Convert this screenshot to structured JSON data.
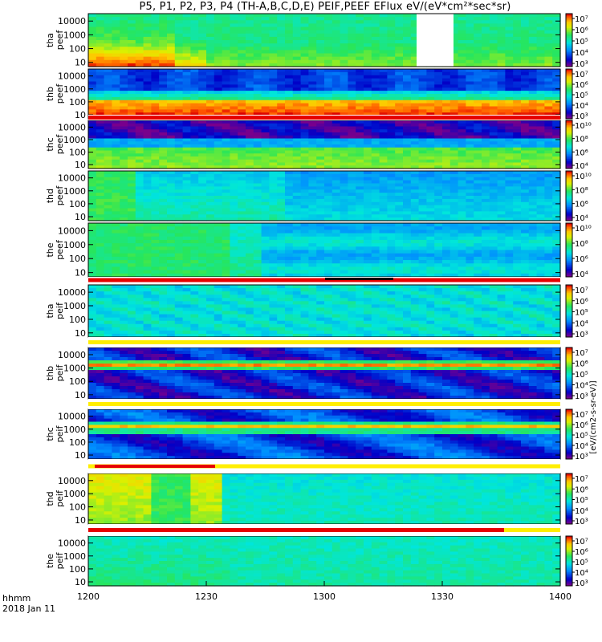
{
  "title": "P5, P1, P2, P3, P4 (TH-A,B,C,D,E) PEIF,PEEF EFlux eV/(eV*cm²*sec*sr)",
  "x_axis": {
    "ticks": [
      "1200",
      "1230",
      "1300",
      "1330",
      "1400"
    ],
    "label_line1": "hhmm",
    "label_line2": "2018 Jan 11"
  },
  "y_ticks": [
    "10000",
    "1000",
    "100",
    "10"
  ],
  "cbar_ticks_a": [
    "10⁷",
    "10⁶",
    "10⁵",
    "10⁴",
    "10³"
  ],
  "cbar_ticks_b": [
    "10¹⁰",
    "10⁸",
    "10⁶",
    "10⁴"
  ],
  "cbar_label": "eV/(cm²-s-sr-eV)",
  "cbar_label_full": "[eV/(cm2-s-sr-eV)]",
  "chart_data": {
    "type": "heatmap",
    "title": "P5, P1, P2, P3, P4 (TH-A,B,C,D,E) PEIF,PEEF EFlux eV/(eV*cm²*sec*sr)",
    "x": {
      "label": "hhmm",
      "date": "2018 Jan 11",
      "range": [
        "1200",
        "1400"
      ],
      "ticks": [
        "1200",
        "1230",
        "1300",
        "1330",
        "1400"
      ]
    },
    "y": {
      "scale": "log",
      "unit": "eV",
      "ticks": [
        10000,
        1000,
        100,
        10
      ]
    },
    "colorbar": {
      "scale": "log",
      "label": "eV/(cm²-s-sr-eV)"
    },
    "panels": [
      {
        "ylabel": [
          "tha",
          "peef"
        ],
        "cbar_ticks": [
          "10⁷",
          "10⁶",
          "10⁵",
          "10⁴",
          "10³"
        ],
        "note": "data gap ~1324-1333"
      },
      {
        "ylabel": [
          "thb",
          "peef"
        ],
        "cbar_ticks": [
          "10⁷",
          "10⁶",
          "10⁵",
          "10⁴",
          "10³"
        ]
      },
      {
        "ylabel": [
          "thc",
          "peef"
        ],
        "cbar_ticks": [
          "10¹⁰",
          "10⁸",
          "10⁶",
          "10⁴"
        ]
      },
      {
        "ylabel": [
          "thd",
          "peef"
        ],
        "cbar_ticks": [
          "10¹⁰",
          "10⁸",
          "10⁶",
          "10⁴"
        ]
      },
      {
        "ylabel": [
          "the",
          "peef"
        ],
        "cbar_ticks": [
          "10¹⁰",
          "10⁸",
          "10⁶",
          "10⁴"
        ]
      },
      {
        "ylabel": [
          "tha",
          "peif"
        ],
        "cbar_ticks": [
          "10⁷",
          "10⁶",
          "10⁵",
          "10⁴",
          "10³"
        ]
      },
      {
        "ylabel": [
          "thb",
          "peif"
        ],
        "cbar_ticks": [
          "10⁷",
          "10⁶",
          "10⁵",
          "10⁴",
          "10³"
        ]
      },
      {
        "ylabel": [
          "thc",
          "peif"
        ],
        "cbar_ticks": [
          "10⁷",
          "10⁶",
          "10⁵",
          "10⁴",
          "10³"
        ]
      },
      {
        "ylabel": [
          "thd",
          "peif"
        ],
        "cbar_ticks": [
          "10⁷",
          "10⁶",
          "10⁵",
          "10⁴",
          "10³"
        ]
      },
      {
        "ylabel": [
          "the",
          "peif"
        ],
        "cbar_ticks": [
          "10⁷",
          "10⁶",
          "10⁵",
          "10⁴",
          "10³"
        ]
      }
    ]
  }
}
